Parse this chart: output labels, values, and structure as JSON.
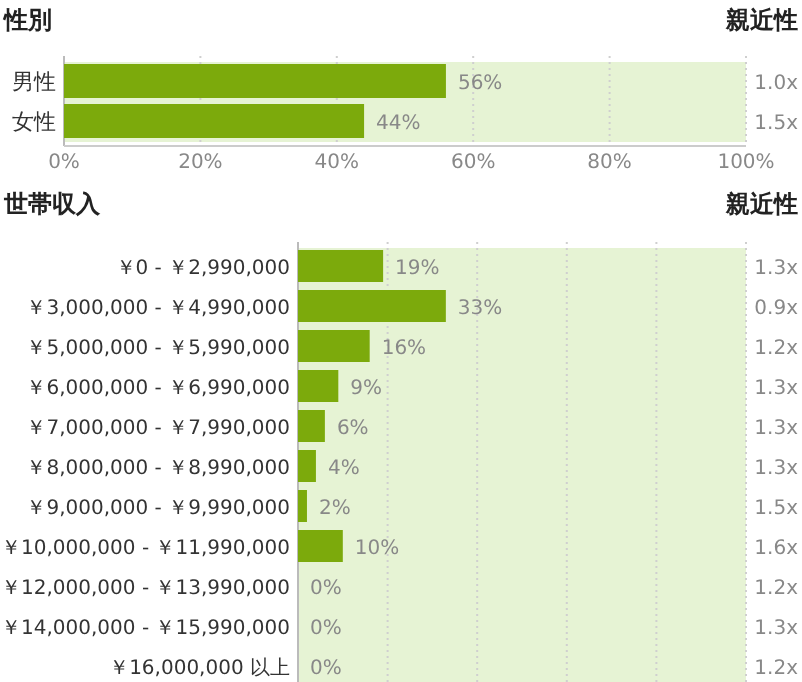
{
  "chart_data": [
    {
      "type": "bar",
      "orientation": "horizontal",
      "title": "性別",
      "y2label": "親近性",
      "categories": [
        "男性",
        "女性"
      ],
      "values": [
        56,
        44
      ],
      "color": "#7caa0c",
      "value_labels": [
        "56%",
        "44%"
      ],
      "xlim": [
        0,
        100
      ],
      "xticks": [
        {
          "value": 0,
          "label": "0%"
        },
        {
          "value": 20,
          "label": "20%"
        },
        {
          "value": 40,
          "label": "40%"
        },
        {
          "value": 60,
          "label": "60%"
        },
        {
          "value": 80,
          "label": "80%"
        },
        {
          "value": 100,
          "label": "100%"
        }
      ],
      "grid": "x",
      "bands": [
        {
          "axis": "x",
          "from": 0,
          "to": 100,
          "color": "#e6f3d4"
        }
      ],
      "annotations": [
        "1.0x",
        "1.5x"
      ]
    },
    {
      "type": "bar",
      "orientation": "horizontal",
      "title": "世帯収入",
      "y2label": "親近性",
      "categories": [
        "￥0 - ￥2,990,000",
        "￥3,000,000 - ￥4,990,000",
        "￥5,000,000 - ￥5,990,000",
        "￥6,000,000 - ￥6,990,000",
        "￥7,000,000 - ￥7,990,000",
        "￥8,000,000 - ￥8,990,000",
        "￥9,000,000 - ￥9,990,000",
        "￥10,000,000 - ￥11,990,000",
        "￥12,000,000 - ￥13,990,000",
        "￥14,000,000 - ￥15,990,000",
        "￥16,000,000 以上"
      ],
      "values": [
        19,
        33,
        16,
        9,
        6,
        4,
        2,
        10,
        0,
        0,
        0
      ],
      "color": "#7caa0c",
      "value_labels": [
        "19%",
        "33%",
        "16%",
        "9%",
        "6%",
        "4%",
        "2%",
        "10%",
        "0%",
        "0%",
        "0%"
      ],
      "xlim": [
        0,
        100
      ],
      "xticks": [
        {
          "value": 0,
          "label": null
        },
        {
          "value": 20,
          "label": null
        },
        {
          "value": 40,
          "label": null
        },
        {
          "value": 60,
          "label": null
        },
        {
          "value": 80,
          "label": null
        },
        {
          "value": 100,
          "label": null
        }
      ],
      "grid": "x",
      "bands": [
        {
          "axis": "x",
          "from": 0,
          "to": 100,
          "color": "#e6f3d4"
        }
      ],
      "annotations": [
        "1.3x",
        "0.9x",
        "1.2x",
        "1.3x",
        "1.3x",
        "1.3x",
        "1.5x",
        "1.6x",
        "1.2x",
        "1.3x",
        "1.2x"
      ]
    }
  ]
}
